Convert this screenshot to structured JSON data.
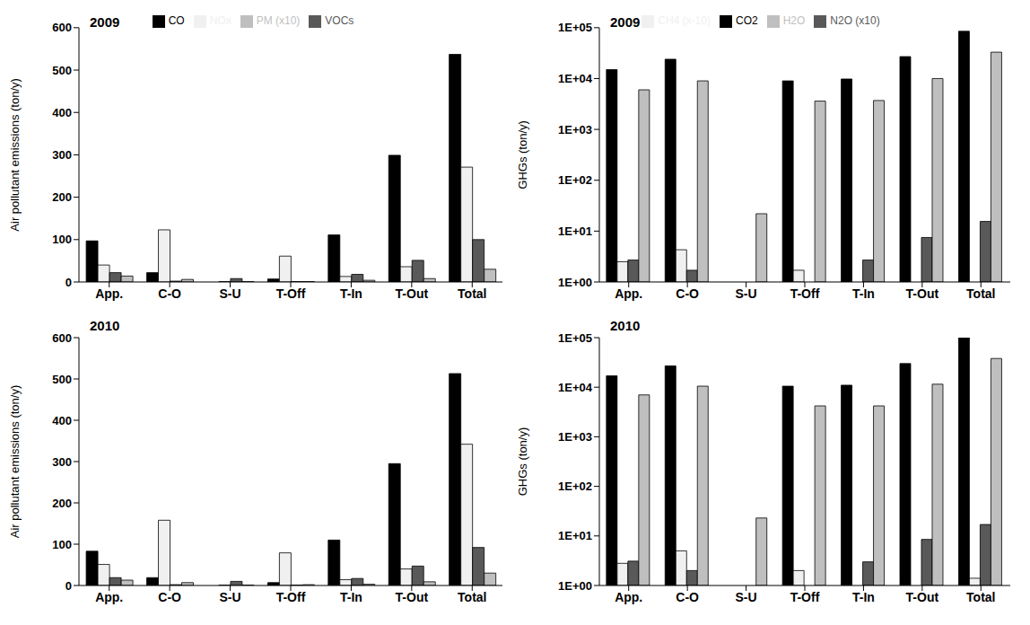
{
  "chart_data": [
    {
      "type": "bar",
      "title": "2009",
      "ylabel": "Air pollutant emissions (ton/y)",
      "categories": [
        "App.",
        "C-O",
        "S-U",
        "T-Off",
        "T-In",
        "T-Out",
        "Total"
      ],
      "series": [
        {
          "name": "CO",
          "color": "#000000",
          "values": [
            97,
            22,
            0,
            7,
            111,
            299,
            537
          ]
        },
        {
          "name": "NOx",
          "color": "#f0f0f0",
          "values": [
            40,
            123,
            1,
            61,
            13,
            36,
            271
          ]
        },
        {
          "name": "VOCs",
          "color": "#595959",
          "values": [
            22,
            2,
            8,
            1,
            18,
            51,
            100
          ]
        },
        {
          "name": "PM (x10)",
          "color": "#bfbfbf",
          "values": [
            14,
            6,
            1,
            1,
            4,
            8,
            30
          ]
        }
      ],
      "ylim": [
        0,
        600
      ],
      "yticks": [
        0,
        100,
        200,
        300,
        400,
        500,
        600
      ],
      "legend": "top"
    },
    {
      "type": "bar",
      "title": "2009",
      "ylabel": "GHGs (ton/y)",
      "categories": [
        "App.",
        "C-O",
        "S-U",
        "T-Off",
        "T-In",
        "T-Out",
        "Total"
      ],
      "series": [
        {
          "name": "CO2",
          "color": "#000000",
          "values": [
            15000,
            24000,
            null,
            9000,
            9800,
            27000,
            85000
          ]
        },
        {
          "name": "CH4 (x-10)",
          "color": "#f0f0f0",
          "values": [
            2.5,
            4.3,
            null,
            1.7,
            null,
            null,
            null
          ]
        },
        {
          "name": "N2O (x10)",
          "color": "#595959",
          "values": [
            2.7,
            1.7,
            null,
            null,
            2.7,
            7.5,
            15.5
          ]
        },
        {
          "name": "H2O",
          "color": "#bfbfbf",
          "values": [
            6000,
            9000,
            22,
            3600,
            3700,
            10000,
            33000
          ]
        }
      ],
      "ylim": [
        1,
        100000
      ],
      "yticks": [
        {
          "value": 1,
          "label": "1E+00"
        },
        {
          "value": 10,
          "label": "1E+01"
        },
        {
          "value": 100,
          "label": "1E+02"
        },
        {
          "value": 1000,
          "label": "1E+03"
        },
        {
          "value": 10000,
          "label": "1E+04"
        },
        {
          "value": 100000,
          "label": "1E+05"
        }
      ],
      "log": "y",
      "legend": "top"
    },
    {
      "type": "bar",
      "title": "2010",
      "ylabel": "Air pollutant emissions (ton/y)",
      "categories": [
        "App.",
        "C-O",
        "S-U",
        "T-Off",
        "T-In",
        "T-Out",
        "Total"
      ],
      "series": [
        {
          "name": "CO",
          "color": "#000000",
          "values": [
            83,
            19,
            0,
            7,
            110,
            295,
            513
          ]
        },
        {
          "name": "NOx",
          "color": "#f0f0f0",
          "values": [
            51,
            158,
            1,
            79,
            14,
            40,
            342
          ]
        },
        {
          "name": "VOCs",
          "color": "#595959",
          "values": [
            19,
            2,
            10,
            1,
            17,
            47,
            92
          ]
        },
        {
          "name": "PM (x10)",
          "color": "#bfbfbf",
          "values": [
            13,
            7,
            1,
            2,
            3,
            9,
            30
          ]
        }
      ],
      "ylim": [
        0,
        600
      ],
      "yticks": [
        0,
        100,
        200,
        300,
        400,
        500,
        600
      ]
    },
    {
      "type": "bar",
      "title": "2010",
      "ylabel": "GHGs (ton/y)",
      "categories": [
        "App.",
        "C-O",
        "S-U",
        "T-Off",
        "T-In",
        "T-Out",
        "Total"
      ],
      "series": [
        {
          "name": "CO2",
          "color": "#000000",
          "values": [
            17000,
            27000,
            null,
            10500,
            11000,
            30000,
            100000
          ]
        },
        {
          "name": "CH4 (x-10)",
          "color": "#f0f0f0",
          "values": [
            2.8,
            5,
            null,
            2,
            null,
            null,
            1.4
          ]
        },
        {
          "name": "N2O (x10)",
          "color": "#595959",
          "values": [
            3.1,
            2,
            null,
            null,
            3,
            8.5,
            17
          ]
        },
        {
          "name": "H2O",
          "color": "#bfbfbf",
          "values": [
            7000,
            10500,
            23,
            4200,
            4200,
            11500,
            38000
          ]
        }
      ],
      "ylim": [
        1,
        100000
      ],
      "yticks": [
        {
          "value": 1,
          "label": "1E+00"
        },
        {
          "value": 10,
          "label": "1E+01"
        },
        {
          "value": 100,
          "label": "1E+02"
        },
        {
          "value": 1000,
          "label": "1E+03"
        },
        {
          "value": 10000,
          "label": "1E+04"
        },
        {
          "value": 100000,
          "label": "1E+05"
        }
      ],
      "log": "y"
    }
  ]
}
